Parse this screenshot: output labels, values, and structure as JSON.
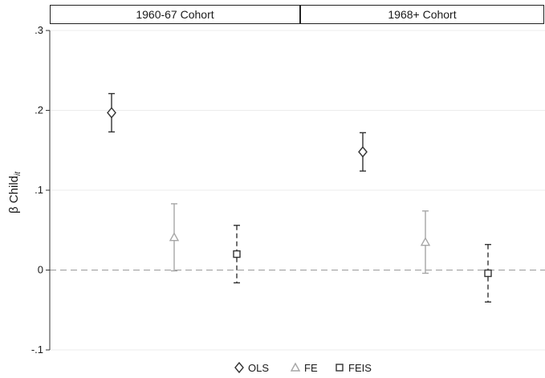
{
  "chart_data": {
    "type": "scatter",
    "subtype": "coefficient plot with 95% confidence intervals",
    "panels": [
      "1960-67 Cohort",
      "1968+ Cohort"
    ],
    "ylabel": "β Child",
    "ylabel_subscript": "it",
    "ylim": [
      -0.1,
      0.3
    ],
    "yticks": [
      -0.1,
      0,
      0.1,
      0.2,
      0.3
    ],
    "ytick_labels": [
      "-.1",
      "0",
      ".1",
      ".2",
      ".3"
    ],
    "reference_line": 0,
    "grid": true,
    "legend_position": "bottom",
    "series": [
      {
        "name": "OLS",
        "marker": "diamond",
        "color": "#333333",
        "line_style": "solid",
        "values": [
          0.197,
          0.148
        ],
        "ci_low": [
          0.173,
          0.124
        ],
        "ci_high": [
          0.221,
          0.172
        ]
      },
      {
        "name": "FE",
        "marker": "triangle",
        "color": "#a6a6a6",
        "line_style": "solid",
        "values": [
          0.041,
          0.035
        ],
        "ci_low": [
          -0.001,
          -0.004
        ],
        "ci_high": [
          0.083,
          0.074
        ]
      },
      {
        "name": "FEIS",
        "marker": "square",
        "color": "#333333",
        "line_style": "dashed",
        "values": [
          0.02,
          -0.004
        ],
        "ci_low": [
          -0.016,
          -0.04
        ],
        "ci_high": [
          0.056,
          0.032
        ]
      }
    ]
  }
}
